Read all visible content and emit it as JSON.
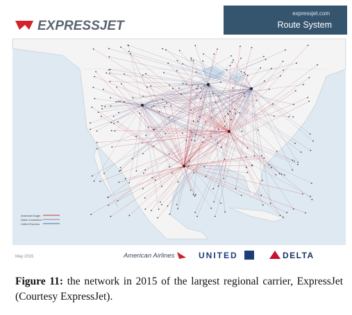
{
  "header": {
    "logo": "EXPRESSJET",
    "website": "expressjet.com",
    "subtitle": "Route System"
  },
  "legend": [
    "American Eagle",
    "Delta Connection",
    "United Express"
  ],
  "footer": {
    "date": "May 2015",
    "partners": [
      "American Airlines",
      "UNITED",
      "DELTA"
    ]
  },
  "caption": {
    "label": "Figure 11:",
    "text": "the network in 2015 of the largest regional carrier, ExpressJet (Courtesy ExpressJet)."
  }
}
